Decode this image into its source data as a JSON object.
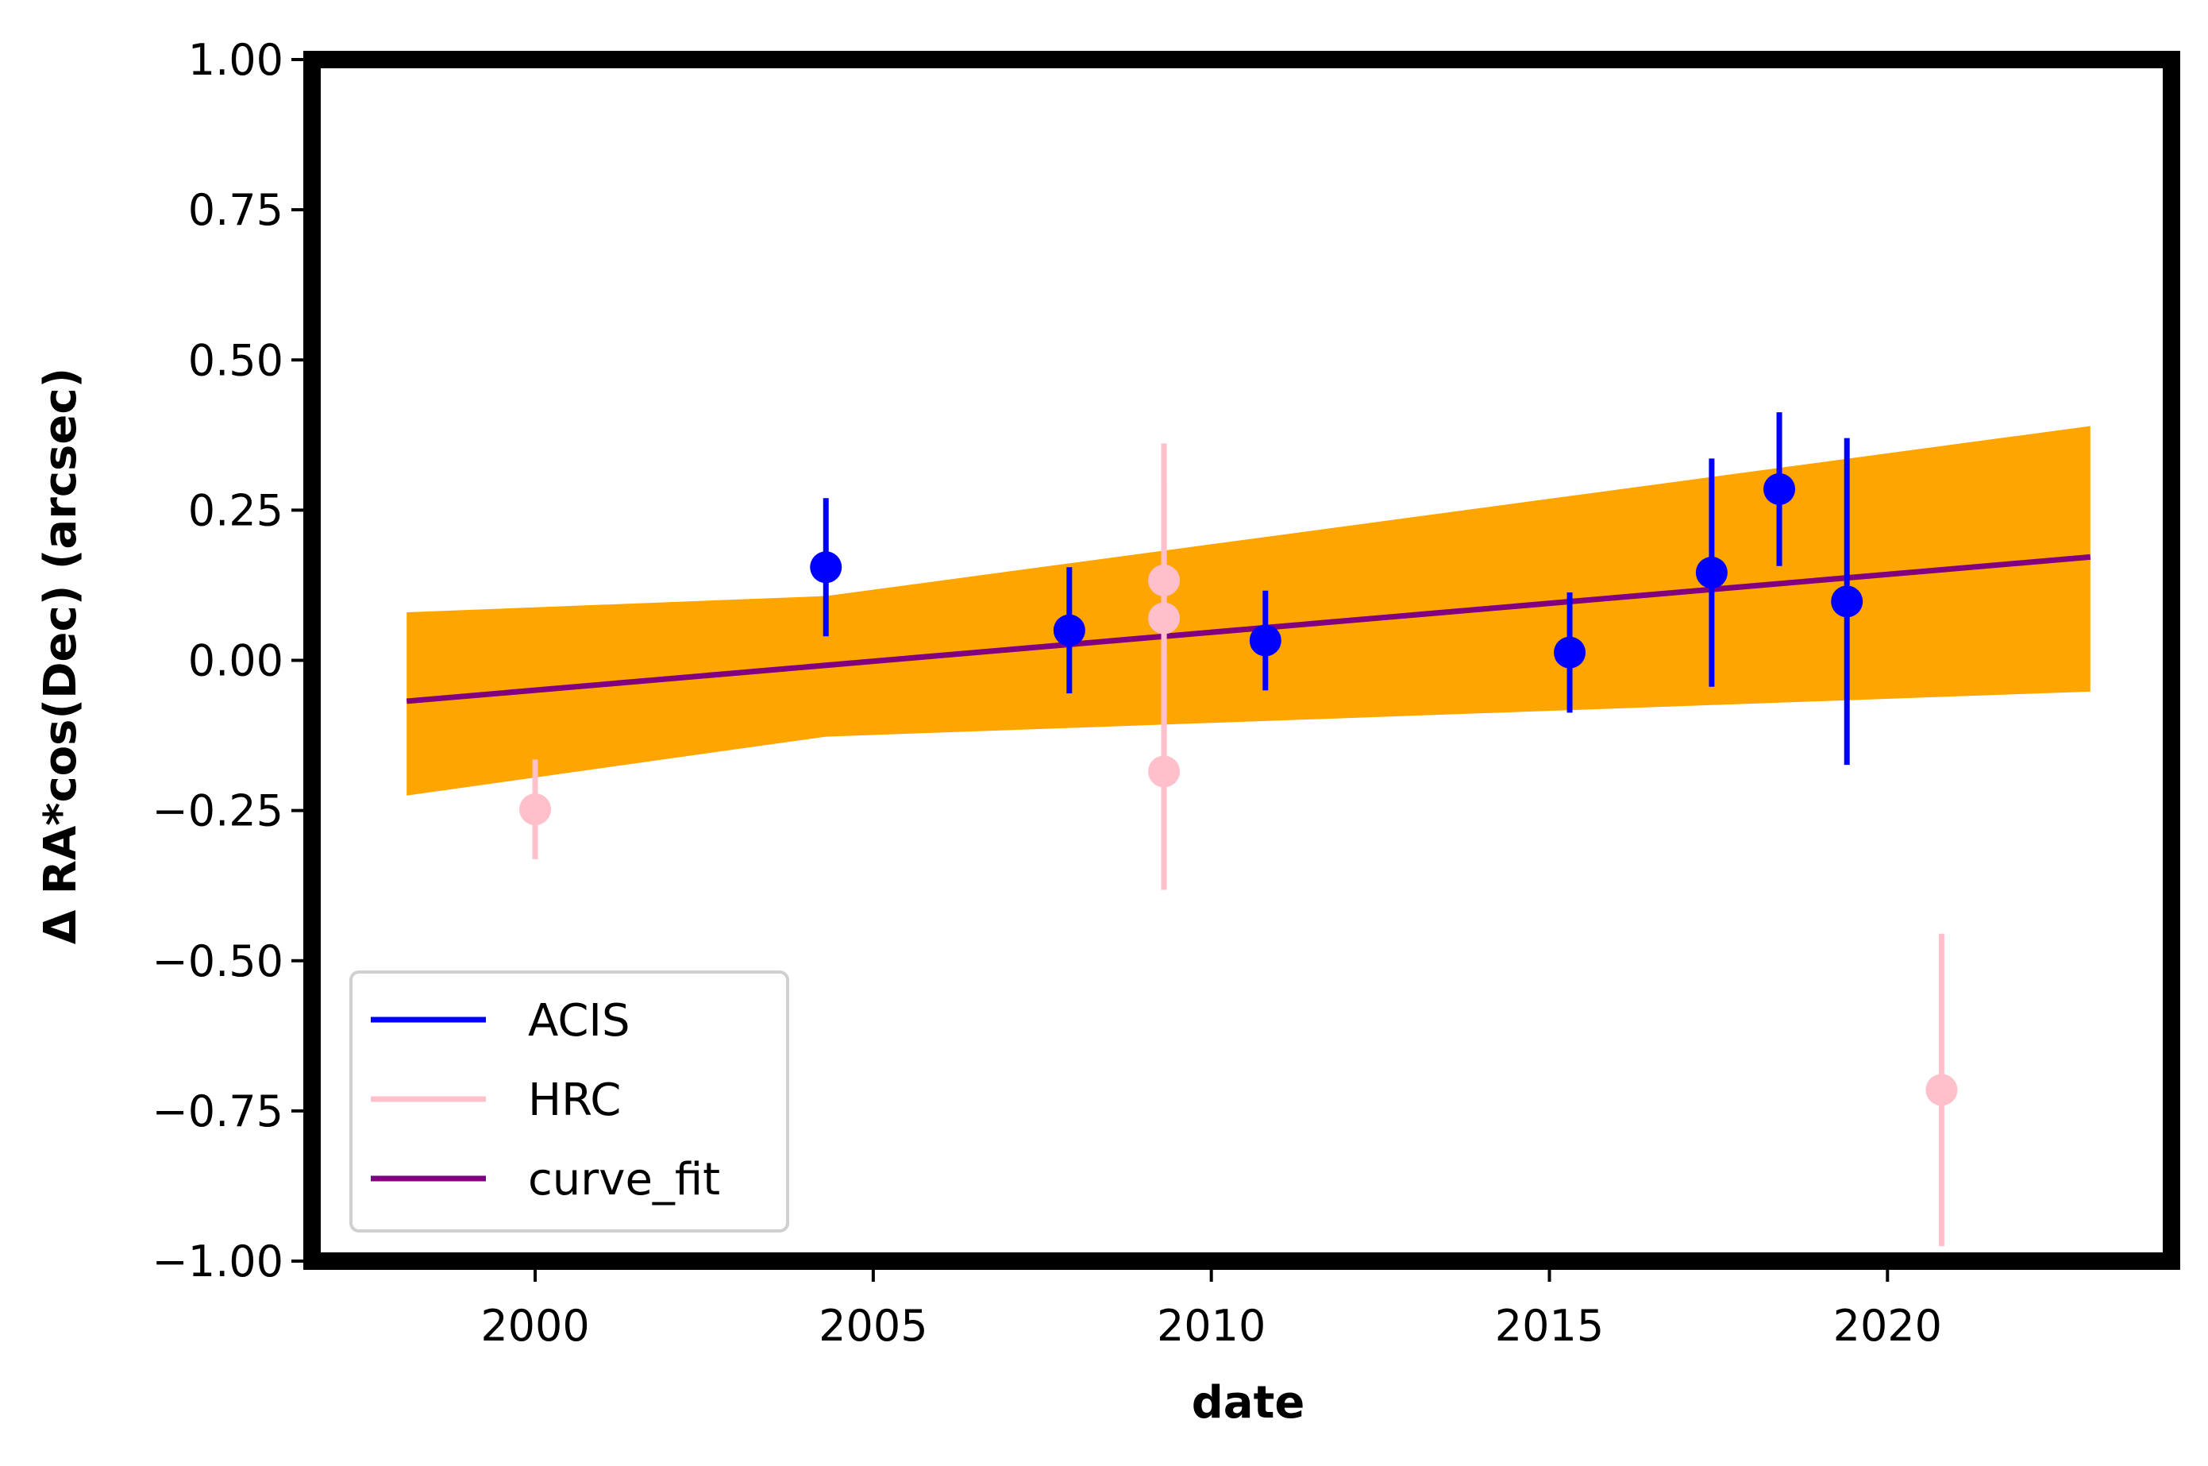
{
  "chart_data": {
    "type": "scatter",
    "xlabel": "date",
    "ylabel": "Δ RA*cos(Dec) (arcsec)",
    "xlim": [
      1996.7,
      2024.2
    ],
    "ylim": [
      -1.0,
      1.0
    ],
    "x_ticks": [
      2000,
      2005,
      2010,
      2015,
      2020
    ],
    "x_tick_labels": [
      "2000",
      "2005",
      "2010",
      "2015",
      "2020"
    ],
    "y_ticks": [
      1.0,
      0.75,
      0.5,
      0.25,
      0.0,
      -0.25,
      -0.5,
      -0.75,
      -1.0
    ],
    "y_tick_labels": [
      "1.00",
      "0.75",
      "0.50",
      "0.25",
      "0.00",
      "−0.25",
      "−0.50",
      "−0.75",
      "−1.00"
    ],
    "grid": false,
    "legend_position": "lower-left",
    "series": [
      {
        "name": "ACIS",
        "color": "#0000ff",
        "points": [
          {
            "x": 2004.3,
            "y": 0.155,
            "yerr": 0.115
          },
          {
            "x": 2007.9,
            "y": 0.05,
            "yerr": 0.105
          },
          {
            "x": 2010.8,
            "y": 0.033,
            "yerr": 0.083
          },
          {
            "x": 2015.3,
            "y": 0.013,
            "yerr": 0.1
          },
          {
            "x": 2017.4,
            "y": 0.146,
            "yerr": 0.19
          },
          {
            "x": 2018.4,
            "y": 0.285,
            "yerr": 0.128
          },
          {
            "x": 2019.4,
            "y": 0.098,
            "yerr": 0.272
          }
        ]
      },
      {
        "name": "HRC",
        "color": "#ffc0cb",
        "points": [
          {
            "x": 2000.0,
            "y": -0.248,
            "yerr": 0.083
          },
          {
            "x": 2009.3,
            "y": 0.133,
            "yerr": 0.228
          },
          {
            "x": 2009.3,
            "y": 0.07,
            "yerr": 0.228
          },
          {
            "x": 2009.3,
            "y": -0.185,
            "yerr": 0.197
          },
          {
            "x": 2020.8,
            "y": -0.715,
            "yerr": 0.26
          }
        ]
      },
      {
        "name": "curve_fit",
        "color": "#800080",
        "type": "line",
        "x": [
          1998.1,
          2023.0
        ],
        "y": [
          -0.068,
          0.172
        ]
      }
    ],
    "confidence_band": {
      "color": "#ffa500",
      "x": [
        1998.1,
        2004.3,
        2023.0
      ],
      "upper": [
        0.08,
        0.107,
        0.39
      ],
      "lower": [
        -0.225,
        -0.127,
        -0.052
      ]
    },
    "frame_color": "#000000"
  }
}
